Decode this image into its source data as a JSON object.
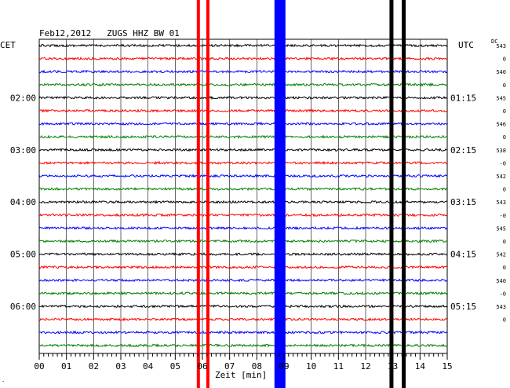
{
  "chart_data": {
    "type": "line",
    "title": "Feb12,2012   ZUGS HHZ BW 01",
    "left_timezone": "CET",
    "right_timezone": "UTC",
    "dc_label": "DC",
    "xlabel": "Zeit [min]",
    "xlim": [
      0,
      15
    ],
    "x_ticks": [
      "00",
      "01",
      "02",
      "03",
      "04",
      "05",
      "06",
      "07",
      "08",
      "09",
      "10",
      "11",
      "12",
      "13",
      "14",
      "15"
    ],
    "trace_count": 24,
    "trace_colors": [
      "#000000",
      "#ff0000",
      "#0000ff",
      "#008000"
    ],
    "left_hour_labels": [
      {
        "trace": 4,
        "label": "02:00"
      },
      {
        "trace": 8,
        "label": "03:00"
      },
      {
        "trace": 12,
        "label": "04:00"
      },
      {
        "trace": 16,
        "label": "05:00"
      },
      {
        "trace": 20,
        "label": "06:00"
      }
    ],
    "right_hour_labels": [
      {
        "trace": 4,
        "label": "01:15"
      },
      {
        "trace": 8,
        "label": "02:15"
      },
      {
        "trace": 12,
        "label": "03:15"
      },
      {
        "trace": 16,
        "label": "04:15"
      },
      {
        "trace": 20,
        "label": "05:15"
      }
    ],
    "dc_offsets": [
      "543",
      "0",
      "540",
      "0",
      "545",
      "0",
      "546",
      "0",
      "538",
      "-0",
      "542",
      "0",
      "543",
      "-0",
      "545",
      "0",
      "542",
      "0",
      "540",
      "-0",
      "543",
      "0"
    ],
    "events": [
      {
        "x_min": 5.85,
        "color": "#ff0000"
      },
      {
        "x_min": 6.2,
        "color": "#ff0000"
      },
      {
        "x_min": 8.85,
        "color": "#0000ff"
      },
      {
        "x_min": 12.95,
        "color": "#000000"
      },
      {
        "x_min": 13.4,
        "color": "#000000"
      }
    ],
    "grid": true
  }
}
